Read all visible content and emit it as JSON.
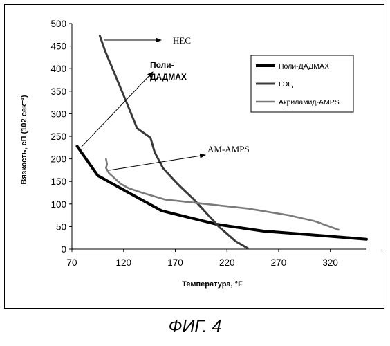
{
  "chart_data": {
    "type": "line",
    "xlabel": "Температура, °F",
    "ylabel": "Вязкость, сП (102 сек⁻¹)",
    "xlim": [
      70,
      355
    ],
    "ylim": [
      0,
      500
    ],
    "x_ticks": [
      70,
      120,
      170,
      220,
      270,
      320
    ],
    "y_ticks": [
      0,
      50,
      100,
      150,
      200,
      250,
      300,
      350,
      400,
      450,
      500
    ],
    "legend": {
      "position": "right"
    },
    "series": [
      {
        "name": "Поли-ДАДМАХ",
        "color": "#000000",
        "points": [
          [
            75,
            228
          ],
          [
            95,
            163
          ],
          [
            125,
            125
          ],
          [
            157,
            85
          ],
          [
            210,
            55
          ],
          [
            255,
            40
          ],
          [
            300,
            32
          ],
          [
            355,
            22
          ]
        ]
      },
      {
        "name": "ГЭЦ",
        "color": "#3a3a3a",
        "points": [
          [
            97,
            473
          ],
          [
            102,
            440
          ],
          [
            112,
            385
          ],
          [
            122,
            330
          ],
          [
            133,
            268
          ],
          [
            146,
            247
          ],
          [
            150,
            215
          ],
          [
            158,
            180
          ],
          [
            172,
            145
          ],
          [
            188,
            110
          ],
          [
            200,
            80
          ],
          [
            212,
            50
          ],
          [
            228,
            18
          ],
          [
            240,
            2
          ]
        ]
      },
      {
        "name": "Акриламид-AMPS",
        "color": "#7a7a7a",
        "points": [
          [
            103,
            200
          ],
          [
            104,
            188
          ],
          [
            103,
            180
          ],
          [
            106,
            168
          ],
          [
            110,
            160
          ],
          [
            117,
            145
          ],
          [
            125,
            135
          ],
          [
            138,
            125
          ],
          [
            160,
            110
          ],
          [
            200,
            100
          ],
          [
            240,
            90
          ],
          [
            280,
            75
          ],
          [
            305,
            62
          ],
          [
            328,
            43
          ]
        ]
      }
    ],
    "annotations": [
      {
        "text": "HEC",
        "style": "serif"
      },
      {
        "text": "Поли-\nДАДМАХ",
        "style": "bold"
      },
      {
        "text": "AM-AMPS",
        "style": "serif"
      }
    ]
  },
  "caption": "ФИГ. 4"
}
